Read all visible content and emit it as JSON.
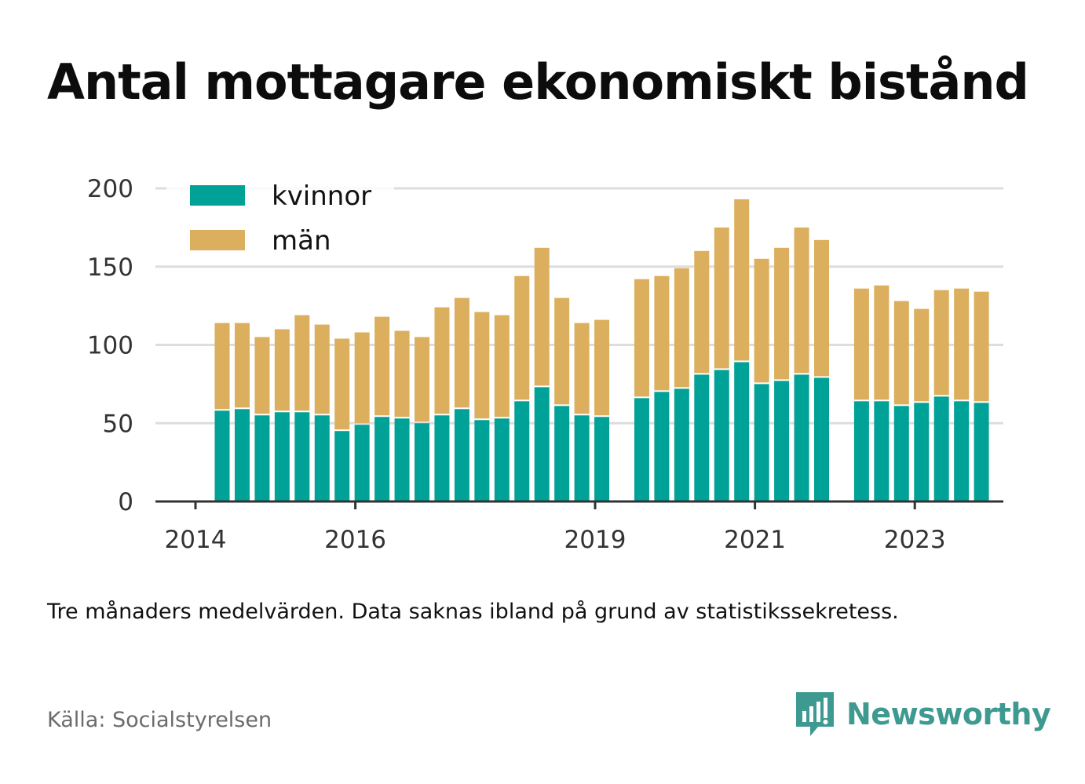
{
  "title": "Antal mottagare ekonomiskt bistånd",
  "note": "Tre månaders medelvärden. Data saknas ibland på grund av statistikssekretess.",
  "source": "Källa: Socialstyrelsen",
  "brand": {
    "name": "Newsworthy"
  },
  "colors": {
    "kvinnor": "#00a297",
    "man": "#dbaf5d",
    "grid": "#dddddd",
    "axis": "#333333",
    "brand": "#3e9a90"
  },
  "chart_data": {
    "type": "bar",
    "stacked": true,
    "xlabel": "",
    "ylabel": "",
    "ylim": [
      0,
      200
    ],
    "yticks": [
      0,
      50,
      100,
      150,
      200
    ],
    "grid": true,
    "legend_position": "top-left",
    "xticks": [
      {
        "label": "2014",
        "at": 0
      },
      {
        "label": "2016",
        "at": 8
      },
      {
        "label": "2019",
        "at": 20
      },
      {
        "label": "2021",
        "at": 28
      },
      {
        "label": "2023",
        "at": 36
      }
    ],
    "series": [
      {
        "name": "kvinnor",
        "values": [
          58,
          59,
          55,
          57,
          57,
          55,
          45,
          49,
          54,
          53,
          50,
          55,
          59,
          52,
          53,
          64,
          73,
          61,
          55,
          54,
          null,
          66,
          70,
          72,
          81,
          84,
          89,
          75,
          77,
          81,
          79,
          null,
          64,
          64,
          61,
          63,
          67,
          64,
          63
        ]
      },
      {
        "name": "män",
        "values": [
          56,
          55,
          50,
          53,
          62,
          58,
          59,
          59,
          64,
          56,
          55,
          69,
          71,
          69,
          66,
          80,
          89,
          69,
          59,
          62,
          null,
          76,
          74,
          77,
          79,
          91,
          104,
          80,
          85,
          94,
          88,
          null,
          72,
          74,
          67,
          60,
          68,
          72,
          71
        ]
      }
    ]
  }
}
